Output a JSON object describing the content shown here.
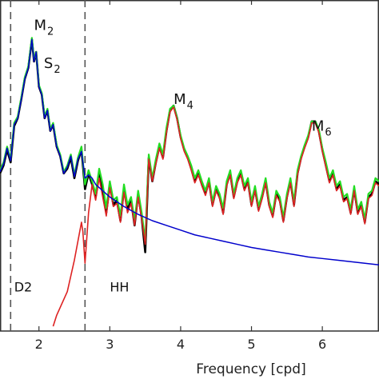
{
  "chart_data": {
    "type": "line",
    "xlabel": "Frequency [cpd]",
    "ylabel": "",
    "xlim": [
      1.45,
      6.8
    ],
    "ylim": [
      -1.05,
      1.05
    ],
    "x_ticks": [
      2,
      3,
      4,
      5,
      6
    ],
    "grid": false,
    "vlines": [
      1.6,
      2.65
    ],
    "colors": {
      "black": "#000000",
      "green": "#22dd22",
      "red": "#dd2222",
      "blue": "#0000cc",
      "axis": "#333333",
      "dash": "#555555"
    },
    "annotations": [
      {
        "main": "M",
        "sub": "2",
        "x": 1.93,
        "y": 0.86
      },
      {
        "main": "S",
        "sub": "2",
        "x": 2.07,
        "y": 0.62
      },
      {
        "main": "M",
        "sub": "4",
        "x": 3.9,
        "y": 0.39
      },
      {
        "main": "M",
        "sub": "6",
        "x": 5.85,
        "y": 0.22
      },
      {
        "main": "D2",
        "sub": "",
        "x": 1.65,
        "y": -0.8
      },
      {
        "main": "HH",
        "sub": "",
        "x": 3.0,
        "y": -0.8
      }
    ],
    "series": [
      {
        "role": "observed",
        "color": "black",
        "x": [
          1.45,
          1.5,
          1.55,
          1.6,
          1.65,
          1.7,
          1.75,
          1.8,
          1.85,
          1.9,
          1.93,
          1.96,
          2.0,
          2.04,
          2.08,
          2.12,
          2.16,
          2.2,
          2.25,
          2.3,
          2.35,
          2.4,
          2.45,
          2.5,
          2.55,
          2.6,
          2.65,
          2.7,
          2.75,
          2.8,
          2.85,
          2.9,
          2.95,
          3.0,
          3.05,
          3.1,
          3.15,
          3.2,
          3.25,
          3.3,
          3.35,
          3.4,
          3.45,
          3.5,
          3.55,
          3.6,
          3.65,
          3.7,
          3.75,
          3.8,
          3.85,
          3.9,
          3.95,
          4.0,
          4.05,
          4.1,
          4.15,
          4.2,
          4.25,
          4.3,
          4.35,
          4.4,
          4.45,
          4.5,
          4.55,
          4.6,
          4.65,
          4.7,
          4.75,
          4.8,
          4.85,
          4.9,
          4.95,
          5.0,
          5.05,
          5.1,
          5.15,
          5.2,
          5.25,
          5.3,
          5.35,
          5.4,
          5.45,
          5.5,
          5.55,
          5.6,
          5.65,
          5.7,
          5.75,
          5.8,
          5.85,
          5.9,
          5.95,
          6.0,
          6.05,
          6.1,
          6.15,
          6.2,
          6.25,
          6.3,
          6.35,
          6.4,
          6.45,
          6.5,
          6.55,
          6.6,
          6.65,
          6.7,
          6.75,
          6.8
        ],
        "y": [
          -0.05,
          0.0,
          0.1,
          0.02,
          0.25,
          0.3,
          0.42,
          0.55,
          0.62,
          0.8,
          0.66,
          0.72,
          0.5,
          0.45,
          0.3,
          0.35,
          0.22,
          0.26,
          0.12,
          0.06,
          -0.05,
          -0.02,
          0.05,
          -0.08,
          0.03,
          0.1,
          -0.15,
          -0.05,
          -0.12,
          -0.2,
          -0.05,
          -0.15,
          -0.3,
          -0.12,
          -0.25,
          -0.22,
          -0.35,
          -0.15,
          -0.28,
          -0.22,
          -0.38,
          -0.18,
          -0.33,
          -0.55,
          0.05,
          -0.1,
          0.02,
          0.12,
          0.05,
          0.22,
          0.35,
          0.38,
          0.3,
          0.18,
          0.1,
          0.05,
          -0.02,
          -0.1,
          -0.05,
          -0.12,
          -0.18,
          -0.1,
          -0.25,
          -0.15,
          -0.2,
          -0.3,
          -0.12,
          -0.05,
          -0.2,
          -0.1,
          -0.05,
          -0.15,
          -0.1,
          -0.25,
          -0.15,
          -0.28,
          -0.2,
          -0.1,
          -0.25,
          -0.32,
          -0.18,
          -0.22,
          -0.35,
          -0.2,
          -0.1,
          -0.25,
          -0.05,
          0.05,
          0.12,
          0.18,
          0.28,
          0.28,
          0.22,
          0.1,
          0.0,
          -0.1,
          -0.05,
          -0.15,
          -0.12,
          -0.22,
          -0.2,
          -0.3,
          -0.15,
          -0.3,
          -0.25,
          -0.36,
          -0.2,
          -0.18,
          -0.1,
          -0.12
        ]
      },
      {
        "role": "green",
        "color": "green",
        "x": [
          1.45,
          1.5,
          1.55,
          1.6,
          1.65,
          1.7,
          1.75,
          1.8,
          1.85,
          1.9,
          1.93,
          1.96,
          2.0,
          2.04,
          2.08,
          2.12,
          2.16,
          2.2,
          2.25,
          2.3,
          2.35,
          2.4,
          2.45,
          2.5,
          2.55,
          2.6,
          2.65,
          2.7,
          2.75,
          2.8,
          2.85,
          2.9,
          2.95,
          3.0,
          3.05,
          3.1,
          3.15,
          3.2,
          3.25,
          3.3,
          3.35,
          3.4,
          3.45,
          3.5,
          3.55,
          3.6,
          3.65,
          3.7,
          3.75,
          3.8,
          3.85,
          3.9,
          3.95,
          4.0,
          4.05,
          4.1,
          4.15,
          4.2,
          4.25,
          4.3,
          4.35,
          4.4,
          4.45,
          4.5,
          4.55,
          4.6,
          4.65,
          4.7,
          4.75,
          4.8,
          4.85,
          4.9,
          4.95,
          5.0,
          5.05,
          5.1,
          5.15,
          5.2,
          5.25,
          5.3,
          5.35,
          5.4,
          5.45,
          5.5,
          5.55,
          5.6,
          5.65,
          5.7,
          5.75,
          5.8,
          5.85,
          5.9,
          5.95,
          6.0,
          6.05,
          6.1,
          6.15,
          6.2,
          6.25,
          6.3,
          6.35,
          6.4,
          6.45,
          6.5,
          6.55,
          6.6,
          6.65,
          6.7,
          6.75,
          6.8
        ],
        "y": [
          -0.03,
          0.02,
          0.12,
          0.04,
          0.27,
          0.31,
          0.43,
          0.56,
          0.63,
          0.81,
          0.67,
          0.72,
          0.51,
          0.46,
          0.31,
          0.36,
          0.23,
          0.27,
          0.13,
          0.07,
          -0.04,
          0.0,
          0.07,
          -0.06,
          0.05,
          0.12,
          -0.12,
          -0.03,
          -0.1,
          -0.18,
          -0.02,
          -0.12,
          -0.27,
          -0.1,
          -0.22,
          -0.2,
          -0.32,
          -0.12,
          -0.25,
          -0.2,
          -0.35,
          -0.16,
          -0.3,
          -0.48,
          0.07,
          -0.08,
          0.04,
          0.14,
          0.07,
          0.24,
          0.36,
          0.38,
          0.3,
          0.19,
          0.11,
          0.06,
          0.0,
          -0.08,
          -0.03,
          -0.1,
          -0.16,
          -0.08,
          -0.23,
          -0.13,
          -0.18,
          -0.27,
          -0.1,
          -0.03,
          -0.18,
          -0.08,
          -0.03,
          -0.13,
          -0.08,
          -0.23,
          -0.13,
          -0.26,
          -0.18,
          -0.08,
          -0.23,
          -0.3,
          -0.16,
          -0.2,
          -0.33,
          -0.18,
          -0.08,
          -0.23,
          -0.03,
          0.06,
          0.13,
          0.19,
          0.28,
          0.28,
          0.23,
          0.11,
          0.02,
          -0.08,
          -0.03,
          -0.13,
          -0.1,
          -0.2,
          -0.18,
          -0.28,
          -0.13,
          -0.28,
          -0.23,
          -0.34,
          -0.18,
          -0.16,
          -0.08,
          -0.1
        ]
      },
      {
        "role": "red",
        "color": "red",
        "x": [
          2.2,
          2.25,
          2.3,
          2.35,
          2.4,
          2.45,
          2.5,
          2.55,
          2.6,
          2.62,
          2.65,
          2.7,
          2.75,
          2.8,
          2.85,
          2.9,
          2.95,
          3.0,
          3.05,
          3.1,
          3.15,
          3.2,
          3.25,
          3.3,
          3.35,
          3.4,
          3.45,
          3.5,
          3.55,
          3.6,
          3.65,
          3.7,
          3.75,
          3.8,
          3.85,
          3.9,
          3.95,
          4.0,
          4.05,
          4.1,
          4.15,
          4.2,
          4.25,
          4.3,
          4.35,
          4.4,
          4.45,
          4.5,
          4.55,
          4.6,
          4.65,
          4.7,
          4.75,
          4.8,
          4.85,
          4.9,
          4.95,
          5.0,
          5.05,
          5.1,
          5.15,
          5.2,
          5.25,
          5.3,
          5.35,
          5.4,
          5.45,
          5.5,
          5.55,
          5.6,
          5.65,
          5.7,
          5.75,
          5.8,
          5.85,
          5.9,
          5.95,
          6.0,
          6.05,
          6.1,
          6.15,
          6.2,
          6.25,
          6.3,
          6.35,
          6.4,
          6.45,
          6.5,
          6.55,
          6.6,
          6.65,
          6.7,
          6.75,
          6.8
        ],
        "y": [
          -1.02,
          -0.95,
          -0.9,
          -0.85,
          -0.8,
          -0.7,
          -0.6,
          -0.48,
          -0.36,
          -0.42,
          -0.62,
          -0.3,
          -0.12,
          -0.22,
          -0.08,
          -0.2,
          -0.32,
          -0.14,
          -0.26,
          -0.24,
          -0.36,
          -0.17,
          -0.3,
          -0.24,
          -0.38,
          -0.2,
          -0.34,
          -0.5,
          0.04,
          -0.1,
          0.01,
          0.11,
          0.04,
          0.21,
          0.34,
          0.37,
          0.29,
          0.17,
          0.09,
          0.04,
          -0.03,
          -0.11,
          -0.06,
          -0.13,
          -0.19,
          -0.11,
          -0.26,
          -0.16,
          -0.21,
          -0.31,
          -0.13,
          -0.06,
          -0.21,
          -0.11,
          -0.06,
          -0.16,
          -0.11,
          -0.26,
          -0.16,
          -0.29,
          -0.21,
          -0.11,
          -0.26,
          -0.33,
          -0.19,
          -0.23,
          -0.36,
          -0.21,
          -0.11,
          -0.26,
          -0.06,
          0.04,
          0.11,
          0.17,
          0.27,
          0.27,
          0.21,
          0.09,
          -0.01,
          -0.11,
          -0.06,
          -0.16,
          -0.13,
          -0.23,
          -0.21,
          -0.31,
          -0.16,
          -0.31,
          -0.26,
          -0.37,
          -0.21,
          -0.19,
          -0.11,
          -0.13
        ]
      },
      {
        "role": "blue",
        "color": "blue",
        "x": [
          1.45,
          1.5,
          1.55,
          1.6,
          1.65,
          1.7,
          1.75,
          1.8,
          1.85,
          1.9,
          1.93,
          1.96,
          2.0,
          2.04,
          2.08,
          2.12,
          2.16,
          2.2,
          2.25,
          2.3,
          2.35,
          2.4,
          2.45,
          2.5,
          2.55,
          2.6,
          2.65,
          2.7,
          2.75,
          2.8,
          2.9,
          3.0,
          3.2,
          3.4,
          3.6,
          3.8,
          4.0,
          4.2,
          4.4,
          4.6,
          4.8,
          5.0,
          5.2,
          5.4,
          5.6,
          5.8,
          6.0,
          6.2,
          6.4,
          6.6,
          6.8
        ],
        "y": [
          -0.04,
          0.01,
          0.11,
          0.03,
          0.26,
          0.3,
          0.42,
          0.55,
          0.62,
          0.8,
          0.66,
          0.72,
          0.5,
          0.45,
          0.3,
          0.35,
          0.22,
          0.26,
          0.12,
          0.06,
          -0.05,
          -0.01,
          0.06,
          -0.07,
          0.04,
          0.09,
          -0.08,
          -0.06,
          -0.08,
          -0.12,
          -0.16,
          -0.2,
          -0.26,
          -0.31,
          -0.35,
          -0.38,
          -0.41,
          -0.44,
          -0.46,
          -0.48,
          -0.5,
          -0.52,
          -0.535,
          -0.55,
          -0.565,
          -0.58,
          -0.59,
          -0.6,
          -0.61,
          -0.62,
          -0.63
        ]
      }
    ]
  }
}
